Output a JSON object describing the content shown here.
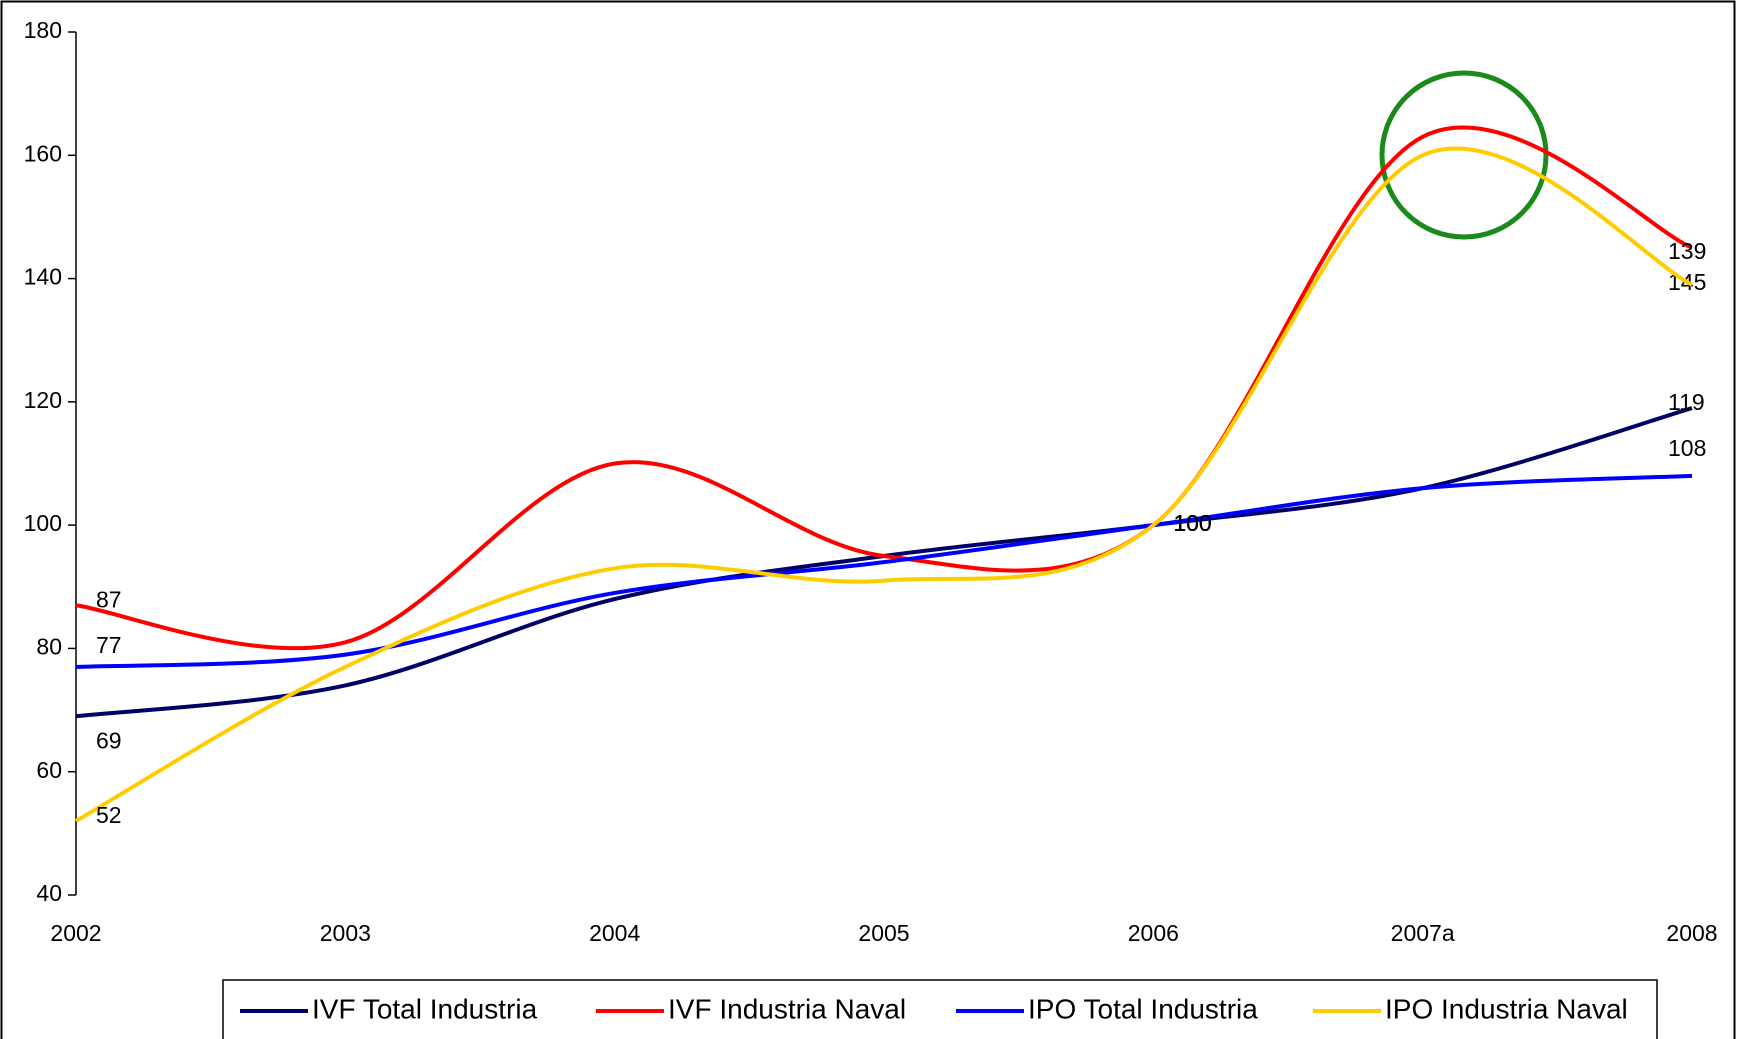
{
  "chart_data": {
    "type": "line",
    "categories": [
      "2002",
      "2003",
      "2004",
      "2005",
      "2006",
      "2007a",
      "2008"
    ],
    "series": [
      {
        "name": "IVF Total Industria",
        "color": "#000066",
        "values": [
          69,
          74,
          88,
          95,
          100,
          106,
          119
        ]
      },
      {
        "name": "IVF Industria Naval",
        "color": "#ff0000",
        "values": [
          87,
          81,
          110,
          95,
          100,
          163,
          145
        ]
      },
      {
        "name": "IPO Total Industria",
        "color": "#0000ff",
        "values": [
          77,
          79,
          89,
          94,
          100,
          106,
          108
        ]
      },
      {
        "name": "IPO Industria Naval",
        "color": "#ffcc00",
        "values": [
          52,
          77,
          93,
          91,
          100,
          160,
          139
        ]
      }
    ],
    "ylim": [
      40,
      180
    ],
    "yticks": [
      40,
      60,
      80,
      100,
      120,
      140,
      160,
      180
    ],
    "smooth": true,
    "legend": "bottom"
  }
}
